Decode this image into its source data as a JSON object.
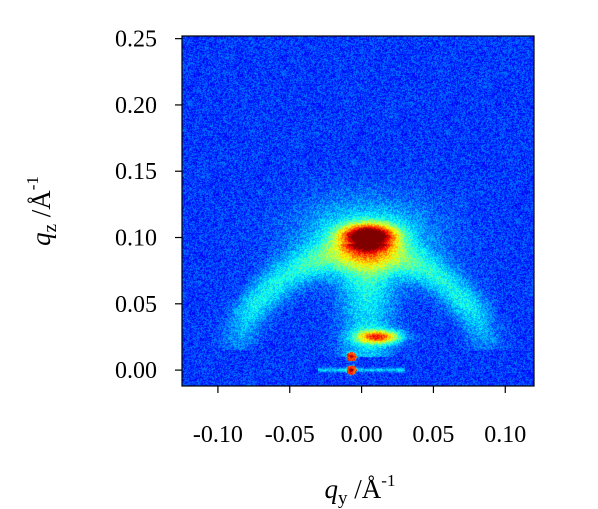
{
  "chart_data": {
    "type": "heatmap",
    "x_axis": {
      "label_main": "q",
      "label_sub": "y",
      "label_unit": " /Å",
      "label_sup": "-1",
      "lim": [
        -0.125,
        0.12
      ],
      "ticks": [
        -0.1,
        -0.05,
        0.0,
        0.05,
        0.1
      ],
      "tick_labels": [
        "-0.10",
        "-0.05",
        "0.00",
        "0.05",
        "0.10"
      ]
    },
    "y_axis": {
      "label_main": "q",
      "label_sub": "z",
      "label_unit": " /Å",
      "label_sup": "-1",
      "lim": [
        -0.012,
        0.252
      ],
      "ticks": [
        0.0,
        0.05,
        0.1,
        0.15,
        0.2,
        0.25
      ],
      "tick_labels": [
        "0.00",
        "0.05",
        "0.10",
        "0.15",
        "0.20",
        "0.25"
      ]
    },
    "colormap": "jet",
    "background_level": 0.18,
    "features": [
      {
        "name": "primary peak",
        "qy": 0.005,
        "qz": 0.101,
        "peak_intensity": 1.0
      },
      {
        "name": "lower streak",
        "qy": 0.012,
        "qz": 0.025,
        "peak_intensity": 0.72
      },
      {
        "name": "specular spot upper",
        "qy": -0.007,
        "qz": 0.01,
        "peak_intensity": 0.9
      },
      {
        "name": "specular spot lower",
        "qy": -0.007,
        "qz": 0.0,
        "peak_intensity": 0.9
      },
      {
        "name": "diffuse ring",
        "center_qy": 0.0,
        "center_qz": 0.0,
        "radius": 0.09,
        "peak_intensity": 0.45
      }
    ],
    "grid": false,
    "legend": "none"
  }
}
